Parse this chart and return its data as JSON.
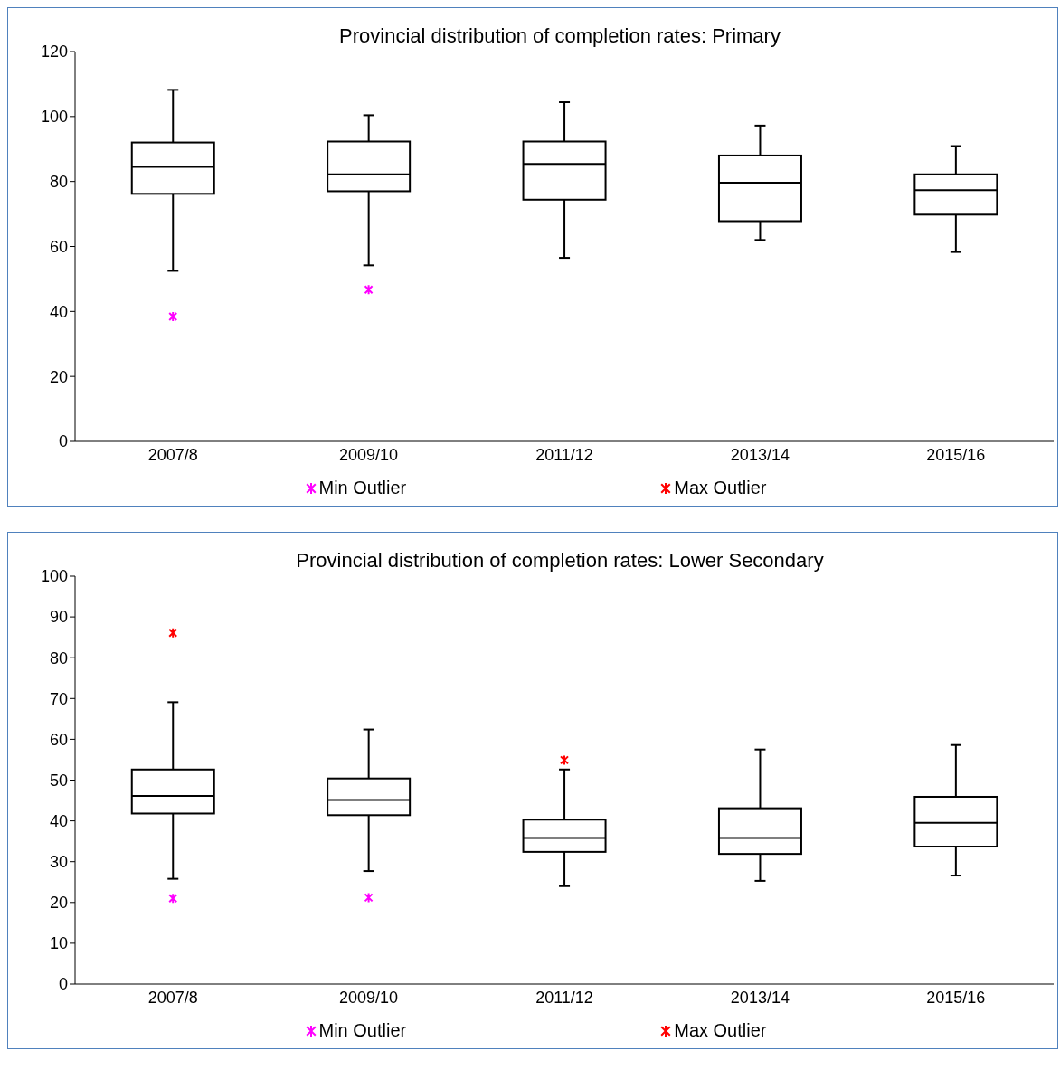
{
  "chart_data": [
    {
      "type": "box",
      "title": "Provincial distribution of completion rates: Primary",
      "categories": [
        "2007/8",
        "2009/10",
        "2011/12",
        "2013/14",
        "2015/16"
      ],
      "boxes": [
        {
          "low": 52.5,
          "q1": 76.2,
          "median": 84.5,
          "q3": 92.0,
          "high": 108.2
        },
        {
          "low": 54.2,
          "q1": 77.0,
          "median": 82.2,
          "q3": 92.3,
          "high": 100.4
        },
        {
          "low": 56.5,
          "q1": 74.4,
          "median": 85.4,
          "q3": 92.3,
          "high": 104.4
        },
        {
          "low": 62.0,
          "q1": 67.8,
          "median": 79.6,
          "q3": 88.0,
          "high": 97.2
        },
        {
          "low": 58.3,
          "q1": 69.8,
          "median": 77.3,
          "q3": 82.2,
          "high": 90.9
        }
      ],
      "series": [
        {
          "name": "Min Outlier",
          "type": "scatter",
          "color": "#ff00ff",
          "x": [
            "2007/8",
            "2009/10"
          ],
          "values": [
            38.4,
            46.7
          ]
        },
        {
          "name": "Max Outlier",
          "type": "scatter",
          "color": "#ff0000",
          "values": [
            null,
            null,
            null,
            null,
            null
          ]
        }
      ],
      "ylim": [
        0,
        120
      ],
      "yticks": [
        0,
        20,
        40,
        60,
        80,
        100,
        120
      ],
      "grid": false,
      "legend": "bottom",
      "marker": "cross"
    },
    {
      "type": "box",
      "title": "Provincial distribution of completion rates: Lower Secondary",
      "categories": [
        "2007/8",
        "2009/10",
        "2011/12",
        "2013/14",
        "2015/16"
      ],
      "boxes": [
        {
          "low": 25.8,
          "q1": 41.8,
          "median": 46.1,
          "q3": 52.6,
          "high": 69.1
        },
        {
          "low": 27.7,
          "q1": 41.4,
          "median": 45.1,
          "q3": 50.4,
          "high": 62.4
        },
        {
          "low": 24.0,
          "q1": 32.4,
          "median": 35.8,
          "q3": 40.3,
          "high": 52.6
        },
        {
          "low": 25.3,
          "q1": 31.9,
          "median": 35.8,
          "q3": 43.1,
          "high": 57.5
        },
        {
          "low": 26.6,
          "q1": 33.7,
          "median": 39.5,
          "q3": 45.9,
          "high": 58.6
        }
      ],
      "series": [
        {
          "name": "Min Outlier",
          "type": "scatter",
          "color": "#ff00ff",
          "x": [
            "2007/8",
            "2009/10"
          ],
          "values": [
            21.0,
            21.2
          ]
        },
        {
          "name": "Max Outlier",
          "type": "scatter",
          "color": "#ff0000",
          "x": [
            "2007/8",
            "2011/12"
          ],
          "values": [
            86.1,
            54.9
          ]
        }
      ],
      "ylim": [
        0,
        100
      ],
      "yticks": [
        0,
        10,
        20,
        30,
        40,
        50,
        60,
        70,
        80,
        90,
        100
      ],
      "grid": false,
      "legend": "bottom",
      "marker": "cross"
    }
  ]
}
